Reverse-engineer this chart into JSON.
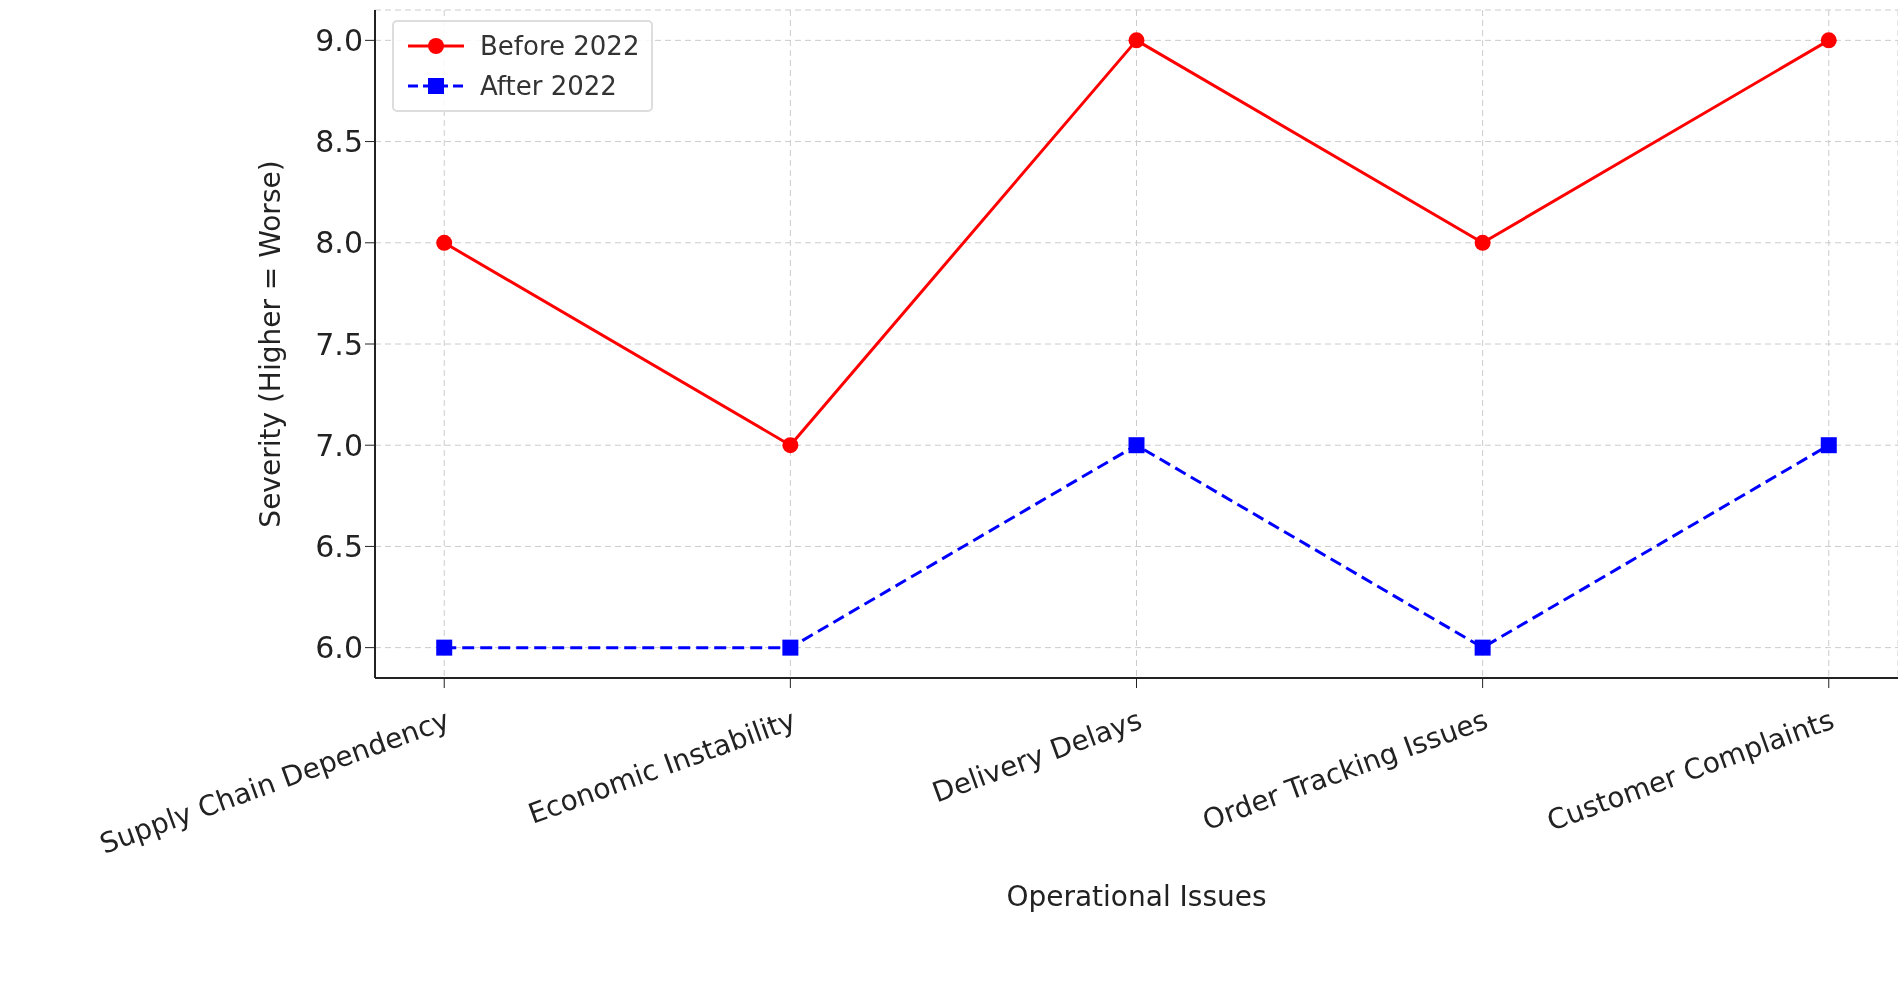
{
  "chart_data": {
    "type": "line",
    "xlabel": "Operational Issues",
    "ylabel": "Severity (Higher = Worse)",
    "categories": [
      "Supply Chain Dependency",
      "Economic Instability",
      "Delivery Delays",
      "Order Tracking Issues",
      "Customer Complaints"
    ],
    "series": [
      {
        "name": "Before 2022",
        "color": "#ff0000",
        "marker": "circle",
        "line_style": "solid",
        "values": [
          8,
          7,
          9,
          8,
          9
        ]
      },
      {
        "name": "After 2022",
        "color": "#0000ff",
        "marker": "square",
        "line_style": "dashed",
        "values": [
          6,
          6,
          7,
          6,
          7
        ]
      }
    ],
    "ylim": [
      5.85,
      9.15
    ],
    "yticks": [
      {
        "value": 6,
        "label": "6.0"
      },
      {
        "value": 6.5,
        "label": "6.5"
      },
      {
        "value": 7,
        "label": "7.0"
      },
      {
        "value": 7.5,
        "label": "7.5"
      },
      {
        "value": 8,
        "label": "8.0"
      },
      {
        "value": 8.5,
        "label": "8.5"
      },
      {
        "value": 9,
        "label": "9.0"
      }
    ],
    "grid": true,
    "legend": "top left"
  }
}
